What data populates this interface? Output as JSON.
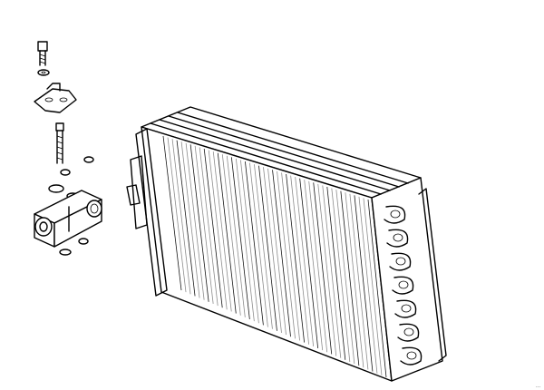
{
  "diagram": {
    "parts": [
      {
        "name": "screw"
      },
      {
        "name": "washer"
      },
      {
        "name": "bracket"
      },
      {
        "name": "bolt"
      },
      {
        "name": "o-ring"
      },
      {
        "name": "expansion-valve"
      },
      {
        "name": "evaporator-core"
      }
    ],
    "reference_number": "···"
  },
  "colors": {
    "line": "#000000",
    "background": "#ffffff"
  }
}
